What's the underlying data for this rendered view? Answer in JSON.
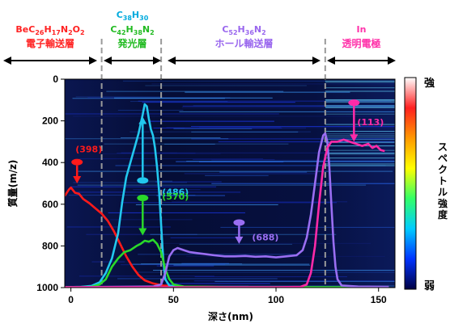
{
  "chart_data": {
    "type": "line",
    "xlabel": "深さ(nm)",
    "ylabel": "質量(m/z)",
    "x_ticks": [
      0,
      50,
      100,
      150
    ],
    "y_ticks": [
      0,
      200,
      400,
      600,
      800,
      1000
    ],
    "xlim": [
      -3,
      158
    ],
    "ylim": [
      0,
      1000
    ],
    "y_inverted": true,
    "colorbar": {
      "label": "スペクトル強度",
      "top": "強",
      "bottom": "弱",
      "colors": [
        "#ffffff",
        "#ff2020",
        "#ff9900",
        "#ffff00",
        "#33ff66",
        "#00ccff",
        "#0033ff",
        "#000044"
      ]
    },
    "layer_boundaries": [
      15,
      44,
      124
    ],
    "layers": [
      {
        "formula_parts": [
          [
            "BeC",
            "n"
          ],
          [
            "26",
            "sub"
          ],
          [
            "H",
            "n"
          ],
          [
            "17",
            "sub"
          ],
          [
            "N",
            "n"
          ],
          [
            "2",
            "sub"
          ],
          [
            "O",
            "n"
          ],
          [
            "2",
            "sub"
          ]
        ],
        "name": "電子輸送層",
        "color": "#ff2222",
        "x_range": [
          -3,
          15
        ]
      },
      {
        "formula_parts": [
          [
            "C",
            "n"
          ],
          [
            "38",
            "sub"
          ],
          [
            "H",
            "n"
          ],
          [
            "30",
            "sub"
          ]
        ],
        "formula2_parts": [
          [
            "C",
            "n"
          ],
          [
            "42",
            "sub"
          ],
          [
            "H",
            "n"
          ],
          [
            "38",
            "sub"
          ],
          [
            "N",
            "n"
          ],
          [
            "2",
            "sub"
          ]
        ],
        "name": "発光層",
        "color": "#22bb22",
        "formula1_color": "#00aadd",
        "x_range": [
          15,
          44
        ]
      },
      {
        "formula_parts": [
          [
            "C",
            "n"
          ],
          [
            "52",
            "sub"
          ],
          [
            "H",
            "n"
          ],
          [
            "36",
            "sub"
          ],
          [
            "N",
            "n"
          ],
          [
            "2",
            "sub"
          ]
        ],
        "name": "ホール輸送層",
        "color": "#9966ee",
        "x_range": [
          44,
          124
        ]
      },
      {
        "formula_parts": [
          [
            "In",
            "n"
          ]
        ],
        "name": "透明電極",
        "color": "#ff33aa",
        "x_range": [
          124,
          158
        ]
      }
    ],
    "series": [
      {
        "name": "(398)",
        "color": "#ff1a1a",
        "marker_mz": 398,
        "marker_x": 3,
        "points": [
          [
            -3,
            560
          ],
          [
            -1,
            530
          ],
          [
            0,
            520
          ],
          [
            2,
            545
          ],
          [
            4,
            550
          ],
          [
            6,
            575
          ],
          [
            9,
            595
          ],
          [
            12,
            620
          ],
          [
            15,
            645
          ],
          [
            18,
            680
          ],
          [
            21,
            730
          ],
          [
            24,
            790
          ],
          [
            27,
            850
          ],
          [
            30,
            900
          ],
          [
            33,
            940
          ],
          [
            36,
            965
          ],
          [
            40,
            980
          ],
          [
            45,
            990
          ],
          [
            55,
            995
          ],
          [
            80,
            998
          ],
          [
            120,
            998
          ],
          [
            155,
            998
          ]
        ]
      },
      {
        "name": "(486)",
        "color": "#22c8ee",
        "marker_mz": 486,
        "marker_x": 35,
        "points": [
          [
            -3,
            998
          ],
          [
            5,
            996
          ],
          [
            10,
            992
          ],
          [
            14,
            975
          ],
          [
            17,
            930
          ],
          [
            20,
            860
          ],
          [
            23,
            740
          ],
          [
            25,
            590
          ],
          [
            27,
            470
          ],
          [
            29,
            400
          ],
          [
            31,
            330
          ],
          [
            33,
            260
          ],
          [
            35,
            170
          ],
          [
            36,
            120
          ],
          [
            37,
            130
          ],
          [
            38,
            190
          ],
          [
            39,
            240
          ],
          [
            40,
            270
          ],
          [
            41,
            330
          ],
          [
            42,
            420
          ],
          [
            43,
            540
          ],
          [
            44,
            700
          ],
          [
            45,
            860
          ],
          [
            46,
            960
          ],
          [
            48,
            990
          ],
          [
            55,
            996
          ],
          [
            80,
            998
          ],
          [
            155,
            998
          ]
        ]
      },
      {
        "name": "(570)",
        "color": "#2ad82a",
        "marker_mz": 570,
        "marker_x": 35,
        "points": [
          [
            -3,
            998
          ],
          [
            10,
            996
          ],
          [
            14,
            985
          ],
          [
            17,
            960
          ],
          [
            20,
            900
          ],
          [
            23,
            860
          ],
          [
            26,
            830
          ],
          [
            29,
            820
          ],
          [
            32,
            800
          ],
          [
            34,
            790
          ],
          [
            36,
            775
          ],
          [
            38,
            780
          ],
          [
            40,
            770
          ],
          [
            42,
            790
          ],
          [
            44,
            830
          ],
          [
            46,
            910
          ],
          [
            48,
            960
          ],
          [
            50,
            985
          ],
          [
            55,
            995
          ],
          [
            80,
            998
          ],
          [
            155,
            998
          ]
        ]
      },
      {
        "name": "(688)",
        "color": "#9a6ef2",
        "marker_mz": 688,
        "marker_x": 82,
        "points": [
          [
            -3,
            998
          ],
          [
            40,
            995
          ],
          [
            44,
            985
          ],
          [
            46,
            930
          ],
          [
            48,
            850
          ],
          [
            50,
            820
          ],
          [
            52,
            810
          ],
          [
            55,
            820
          ],
          [
            58,
            830
          ],
          [
            62,
            835
          ],
          [
            66,
            840
          ],
          [
            70,
            845
          ],
          [
            75,
            850
          ],
          [
            80,
            850
          ],
          [
            85,
            848
          ],
          [
            90,
            852
          ],
          [
            95,
            850
          ],
          [
            100,
            855
          ],
          [
            105,
            850
          ],
          [
            110,
            845
          ],
          [
            113,
            820
          ],
          [
            115,
            760
          ],
          [
            117,
            650
          ],
          [
            119,
            500
          ],
          [
            121,
            350
          ],
          [
            123,
            270
          ],
          [
            124,
            260
          ],
          [
            125,
            300
          ],
          [
            126,
            420
          ],
          [
            127,
            600
          ],
          [
            128,
            780
          ],
          [
            129,
            900
          ],
          [
            130,
            960
          ],
          [
            132,
            990
          ],
          [
            140,
            995
          ],
          [
            155,
            996
          ]
        ]
      },
      {
        "name": "(113)",
        "color": "#ff2aa8",
        "marker_mz": 113,
        "marker_x": 138,
        "points": [
          [
            -3,
            998
          ],
          [
            100,
            998
          ],
          [
            112,
            996
          ],
          [
            115,
            985
          ],
          [
            117,
            930
          ],
          [
            119,
            800
          ],
          [
            121,
            600
          ],
          [
            123,
            420
          ],
          [
            125,
            330
          ],
          [
            127,
            300
          ],
          [
            130,
            300
          ],
          [
            133,
            290
          ],
          [
            136,
            300
          ],
          [
            139,
            310
          ],
          [
            142,
            320
          ],
          [
            145,
            310
          ],
          [
            147,
            330
          ],
          [
            149,
            320
          ],
          [
            151,
            340
          ],
          [
            153,
            345
          ]
        ]
      }
    ]
  }
}
